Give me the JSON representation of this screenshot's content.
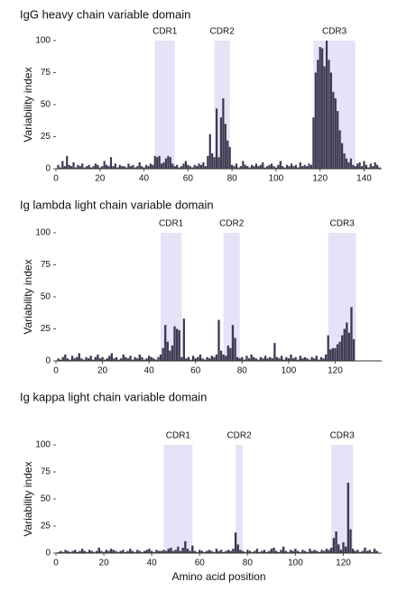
{
  "chart_data": [
    {
      "type": "bar",
      "title": "IgG heavy chain variable domain",
      "ylabel": "Variability index",
      "color": "#3d3950",
      "region_color": "#e4e3f7",
      "xlim": [
        0,
        148
      ],
      "xticks": [
        0,
        20,
        40,
        60,
        80,
        100,
        120,
        140
      ],
      "ylim": [
        0,
        100
      ],
      "yticks": [
        0,
        25,
        50,
        75,
        100
      ],
      "regions": [
        {
          "label": "CDR1",
          "start": 45,
          "end": 54
        },
        {
          "label": "CDR2",
          "start": 72,
          "end": 79
        },
        {
          "label": "CDR3",
          "start": 117,
          "end": 136
        }
      ],
      "x": [
        1,
        2,
        3,
        4,
        5,
        6,
        7,
        8,
        9,
        10,
        11,
        12,
        13,
        14,
        15,
        16,
        17,
        18,
        19,
        20,
        21,
        22,
        23,
        24,
        25,
        26,
        27,
        28,
        29,
        30,
        31,
        32,
        33,
        34,
        35,
        36,
        37,
        38,
        39,
        40,
        41,
        42,
        43,
        44,
        45,
        46,
        47,
        48,
        49,
        50,
        51,
        52,
        53,
        54,
        55,
        56,
        57,
        58,
        59,
        60,
        61,
        62,
        63,
        64,
        65,
        66,
        67,
        68,
        69,
        70,
        71,
        72,
        73,
        74,
        75,
        76,
        77,
        78,
        79,
        80,
        81,
        82,
        83,
        84,
        85,
        86,
        87,
        88,
        89,
        90,
        91,
        92,
        93,
        94,
        95,
        96,
        97,
        98,
        99,
        100,
        101,
        102,
        103,
        104,
        105,
        106,
        107,
        108,
        109,
        110,
        111,
        112,
        113,
        114,
        115,
        116,
        117,
        118,
        119,
        120,
        121,
        122,
        123,
        124,
        125,
        126,
        127,
        128,
        129,
        130,
        131,
        132,
        133,
        134,
        135,
        136,
        137,
        138,
        139,
        140,
        141,
        142,
        143,
        144,
        145,
        146,
        147
      ],
      "values": [
        3,
        1,
        6,
        2,
        10,
        3,
        2,
        5,
        1,
        3,
        2,
        4,
        1,
        2,
        3,
        1,
        2,
        4,
        3,
        1,
        2,
        6,
        3,
        2,
        9,
        2,
        4,
        1,
        3,
        2,
        2,
        1,
        4,
        2,
        3,
        1,
        2,
        5,
        2,
        1,
        3,
        2,
        4,
        3,
        10,
        9,
        10,
        4,
        5,
        8,
        10,
        9,
        4,
        2,
        3,
        1,
        2,
        4,
        6,
        3,
        2,
        1,
        3,
        2,
        4,
        3,
        5,
        2,
        10,
        27,
        12,
        9,
        47,
        9,
        40,
        55,
        35,
        22,
        17,
        3,
        2,
        4,
        1,
        2,
        6,
        3,
        2,
        1,
        3,
        2,
        4,
        2,
        3,
        5,
        1,
        2,
        3,
        4,
        2,
        1,
        3,
        6,
        2,
        1,
        3,
        2,
        4,
        2,
        3,
        1,
        5,
        2,
        3,
        2,
        4,
        3,
        40,
        75,
        85,
        95,
        94,
        80,
        100,
        85,
        75,
        60,
        55,
        45,
        30,
        20,
        12,
        8,
        5,
        8,
        3,
        2,
        4,
        5,
        2,
        6,
        3,
        1,
        4,
        2,
        5,
        3,
        1
      ]
    },
    {
      "type": "bar",
      "title": "Ig lambda light chain variable domain",
      "ylabel": "Variability index",
      "color": "#3d3950",
      "region_color": "#e4e3f7",
      "xlim": [
        0,
        140
      ],
      "xticks": [
        0,
        20,
        40,
        60,
        80,
        100,
        120
      ],
      "ylim": [
        0,
        100
      ],
      "yticks": [
        0,
        25,
        50,
        75,
        100
      ],
      "regions": [
        {
          "label": "CDR1",
          "start": 45,
          "end": 54
        },
        {
          "label": "CDR2",
          "start": 72,
          "end": 79
        },
        {
          "label": "CDR3",
          "start": 117,
          "end": 129
        }
      ],
      "x": [
        1,
        2,
        3,
        4,
        5,
        6,
        7,
        8,
        9,
        10,
        11,
        12,
        13,
        14,
        15,
        16,
        17,
        18,
        19,
        20,
        21,
        22,
        23,
        24,
        25,
        26,
        27,
        28,
        29,
        30,
        31,
        32,
        33,
        34,
        35,
        36,
        37,
        38,
        39,
        40,
        41,
        42,
        43,
        44,
        45,
        46,
        47,
        48,
        49,
        50,
        51,
        52,
        53,
        54,
        55,
        56,
        57,
        58,
        59,
        60,
        61,
        62,
        63,
        64,
        65,
        66,
        67,
        68,
        69,
        70,
        71,
        72,
        73,
        74,
        75,
        76,
        77,
        78,
        79,
        80,
        81,
        82,
        83,
        84,
        85,
        86,
        87,
        88,
        89,
        90,
        91,
        92,
        93,
        94,
        95,
        96,
        97,
        98,
        99,
        100,
        101,
        102,
        103,
        104,
        105,
        106,
        107,
        108,
        109,
        110,
        111,
        112,
        113,
        114,
        115,
        116,
        117,
        118,
        119,
        120,
        121,
        122,
        123,
        124,
        125,
        126,
        127,
        128
      ],
      "values": [
        2,
        1,
        3,
        5,
        2,
        1,
        4,
        2,
        3,
        6,
        2,
        1,
        3,
        2,
        4,
        1,
        3,
        5,
        2,
        3,
        1,
        2,
        4,
        6,
        2,
        3,
        1,
        2,
        5,
        3,
        2,
        4,
        1,
        3,
        2,
        5,
        3,
        1,
        2,
        4,
        3,
        2,
        1,
        3,
        5,
        10,
        28,
        15,
        8,
        12,
        27,
        25,
        24,
        3,
        33,
        2,
        3,
        1,
        4,
        2,
        3,
        5,
        2,
        1,
        3,
        2,
        4,
        3,
        5,
        32,
        8,
        5,
        4,
        12,
        10,
        28,
        18,
        3,
        2,
        3,
        1,
        4,
        2,
        5,
        3,
        2,
        1,
        3,
        2,
        4,
        2,
        3,
        2,
        14,
        3,
        2,
        4,
        1,
        3,
        2,
        5,
        2,
        3,
        1,
        4,
        2,
        3,
        2,
        1,
        3,
        2,
        4,
        1,
        3,
        2,
        5,
        20,
        9,
        10,
        10,
        13,
        15,
        20,
        25,
        30,
        22,
        42,
        17
      ]
    },
    {
      "type": "bar",
      "title": "Ig kappa light chain variable domain",
      "ylabel": "Variability index",
      "xlabel": "Amino acid position",
      "color": "#3d3950",
      "region_color": "#e4e3f7",
      "xlim": [
        0,
        136
      ],
      "xticks": [
        0,
        20,
        40,
        60,
        80,
        100,
        120
      ],
      "ylim": [
        0,
        100
      ],
      "yticks": [
        0,
        25,
        50,
        75,
        100
      ],
      "regions": [
        {
          "label": "CDR1",
          "start": 45,
          "end": 57
        },
        {
          "label": "CDR2",
          "start": 75,
          "end": 78
        },
        {
          "label": "CDR3",
          "start": 115,
          "end": 124
        }
      ],
      "x": [
        1,
        2,
        3,
        4,
        5,
        6,
        7,
        8,
        9,
        10,
        11,
        12,
        13,
        14,
        15,
        16,
        17,
        18,
        19,
        20,
        21,
        22,
        23,
        24,
        25,
        26,
        27,
        28,
        29,
        30,
        31,
        32,
        33,
        34,
        35,
        36,
        37,
        38,
        39,
        40,
        41,
        42,
        43,
        44,
        45,
        46,
        47,
        48,
        49,
        50,
        51,
        52,
        53,
        54,
        55,
        56,
        57,
        58,
        59,
        60,
        61,
        62,
        63,
        64,
        65,
        66,
        67,
        68,
        69,
        70,
        71,
        72,
        73,
        74,
        75,
        76,
        77,
        78,
        79,
        80,
        81,
        82,
        83,
        84,
        85,
        86,
        87,
        88,
        89,
        90,
        91,
        92,
        93,
        94,
        95,
        96,
        97,
        98,
        99,
        100,
        101,
        102,
        103,
        104,
        105,
        106,
        107,
        108,
        109,
        110,
        111,
        112,
        113,
        114,
        115,
        116,
        117,
        118,
        119,
        120,
        121,
        122,
        123,
        124,
        125,
        126,
        127,
        128,
        129,
        130,
        131,
        132,
        133,
        134
      ],
      "values": [
        1,
        2,
        1,
        3,
        2,
        1,
        2,
        3,
        1,
        2,
        4,
        2,
        1,
        3,
        2,
        1,
        2,
        5,
        2,
        1,
        3,
        2,
        4,
        3,
        2,
        1,
        2,
        3,
        1,
        2,
        4,
        2,
        1,
        3,
        2,
        1,
        2,
        3,
        4,
        2,
        1,
        3,
        2,
        2,
        3,
        2,
        4,
        5,
        2,
        3,
        6,
        2,
        5,
        11,
        4,
        2,
        7,
        2,
        1,
        3,
        2,
        1,
        2,
        3,
        2,
        1,
        4,
        2,
        3,
        1,
        2,
        3,
        2,
        4,
        19,
        8,
        3,
        2,
        1,
        3,
        2,
        1,
        2,
        4,
        1,
        2,
        3,
        1,
        2,
        4,
        5,
        2,
        1,
        3,
        6,
        2,
        1,
        3,
        2,
        4,
        2,
        1,
        3,
        2,
        1,
        4,
        2,
        3,
        2,
        1,
        3,
        2,
        4,
        3,
        5,
        14,
        20,
        8,
        3,
        10,
        6,
        65,
        22,
        4,
        2,
        3,
        1,
        2,
        5,
        2,
        3,
        1,
        4,
        2
      ]
    }
  ]
}
